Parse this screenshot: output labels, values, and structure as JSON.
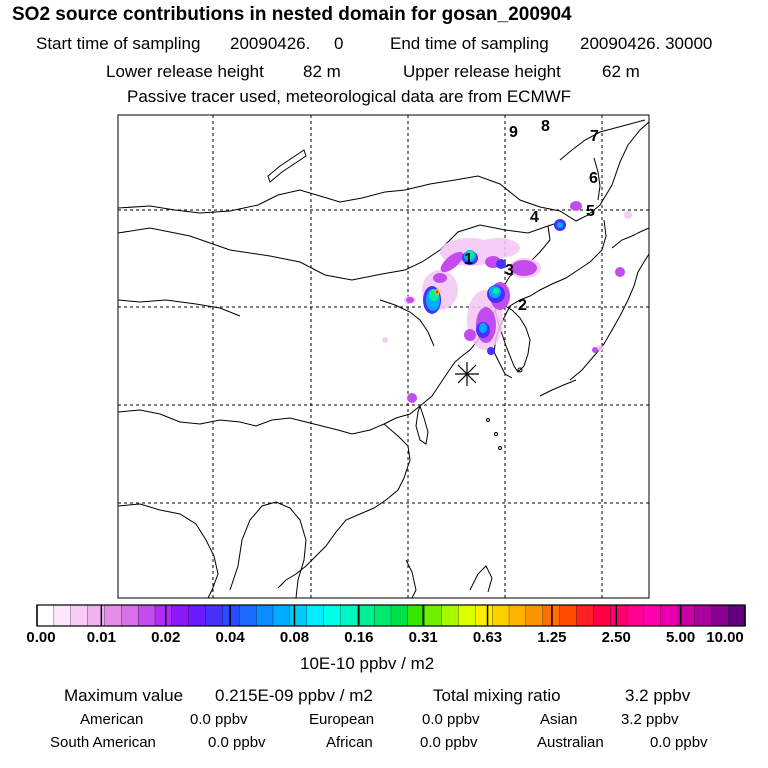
{
  "title": "SO2 source contributions in nested domain for gosan_200904",
  "sampling": {
    "start_label": "Start time of sampling",
    "start_value": "20090426.     0",
    "end_label": "End time of sampling",
    "end_value": "20090426. 30000"
  },
  "release": {
    "lower_label": "Lower release height",
    "lower_value": "82 m",
    "upper_label": "Upper release height",
    "upper_value": "62 m"
  },
  "note": "Passive tracer used, meteorological data are from ECMWF",
  "source_labels": [
    "1",
    "2",
    "3",
    "4",
    "5",
    "6",
    "7",
    "8",
    "9"
  ],
  "colorbar": {
    "ticks": [
      "0.00",
      "0.01",
      "0.02",
      "0.04",
      "0.08",
      "0.16",
      "0.31",
      "0.63",
      "1.25",
      "2.50",
      "5.00",
      "10.00"
    ],
    "units": "10E-10 ppbv / m2",
    "colors": [
      "#ffffff",
      "#fbe6fb",
      "#f6ccf6",
      "#f0b2f0",
      "#e58ee8",
      "#d870ea",
      "#c44cef",
      "#b22cf4",
      "#8f18fb",
      "#6a1cff",
      "#4830ff",
      "#2a4cff",
      "#1a6cff",
      "#0d8cff",
      "#00acff",
      "#00ccff",
      "#00eeff",
      "#00ffe8",
      "#00f5c0",
      "#00f098",
      "#00ea70",
      "#00e048",
      "#36e800",
      "#70f000",
      "#a8f800",
      "#dcff00",
      "#ffee00",
      "#ffd000",
      "#ffb400",
      "#ff9400",
      "#ff7000",
      "#ff4a00",
      "#ff2020",
      "#ff0044",
      "#ff006e",
      "#ff0090",
      "#ff00b0",
      "#e800b0",
      "#c800a6",
      "#a8009c",
      "#880090",
      "#640080"
    ]
  },
  "stats": {
    "max_label": "Maximum value",
    "max_value": "0.215E-09 ppbv / m2",
    "total_label": "Total mixing ratio",
    "total_value": "3.2 ppbv"
  },
  "regions": [
    {
      "name": "American",
      "value": "0.0 ppbv"
    },
    {
      "name": "European",
      "value": "0.0 ppbv"
    },
    {
      "name": "Asian",
      "value": "3.2 ppbv"
    },
    {
      "name": "South American",
      "value": "0.0 ppbv"
    },
    {
      "name": "African",
      "value": "0.0 ppbv"
    },
    {
      "name": "Australian",
      "value": "0.0 ppbv"
    }
  ]
}
